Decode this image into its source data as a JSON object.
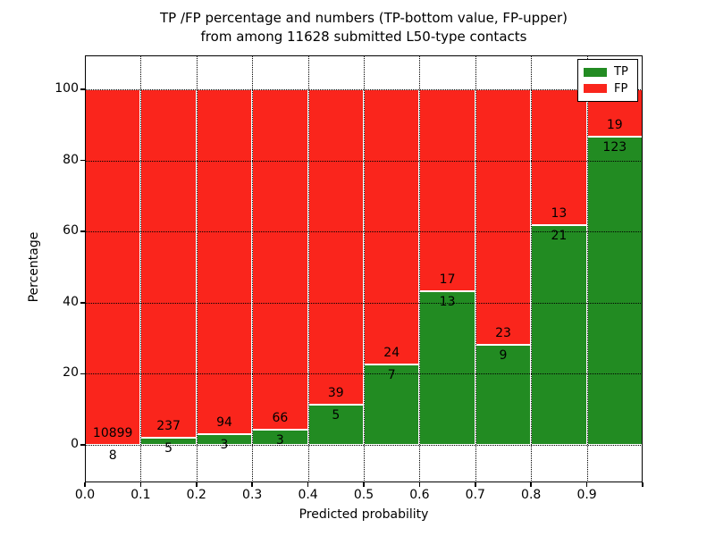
{
  "title": {
    "line1": "TP /FP percentage and numbers (TP-bottom value, FP-upper)",
    "line2": "from among 11628 submitted L50-type contacts"
  },
  "chart_data": {
    "type": "bar",
    "subtype": "stacked-percentage",
    "title": "TP /FP percentage and numbers (TP-bottom value, FP-upper) from among 11628 submitted L50-type contacts",
    "xlabel": "Predicted probability",
    "ylabel": "Percentage",
    "total_contacts": 11628,
    "bin_left_edges": [
      0.0,
      0.1,
      0.2,
      0.3,
      0.4,
      0.5,
      0.6,
      0.7,
      0.8,
      0.9
    ],
    "bin_width": 0.1,
    "x_tick_labels": [
      "0.0",
      "0.1",
      "0.2",
      "0.3",
      "0.4",
      "0.5",
      "0.6",
      "0.7",
      "0.8",
      "0.9"
    ],
    "y_ticks": [
      0,
      20,
      40,
      60,
      80,
      100
    ],
    "y_tick_labels": [
      "0",
      "20",
      "40",
      "60",
      "80",
      "100"
    ],
    "xlim": [
      0.0,
      1.0
    ],
    "ylim": [
      -10.6,
      109.5
    ],
    "grid": "dotted black lines on both axes",
    "series": [
      {
        "name": "TP",
        "color": "#228b22",
        "counts": [
          8,
          5,
          3,
          3,
          5,
          7,
          13,
          9,
          21,
          123
        ]
      },
      {
        "name": "FP",
        "color": "#fa251c",
        "counts": [
          10899,
          237,
          94,
          66,
          39,
          24,
          17,
          23,
          13,
          19
        ]
      }
    ],
    "tp_percent": [
      0.07,
      2.07,
      3.09,
      4.35,
      11.36,
      22.58,
      43.33,
      28.13,
      61.76,
      86.62
    ],
    "fp_percent": [
      99.93,
      97.93,
      96.91,
      95.65,
      88.64,
      77.42,
      56.67,
      71.87,
      38.24,
      13.38
    ],
    "legend": {
      "location": "upper right",
      "entries": [
        "TP",
        "FP"
      ]
    }
  },
  "colors": {
    "tp": "#228b22",
    "fp": "#fa251c",
    "grid": "#000000",
    "bar_edge": "#ffffff",
    "background": "#ffffff",
    "text": "#000000"
  }
}
